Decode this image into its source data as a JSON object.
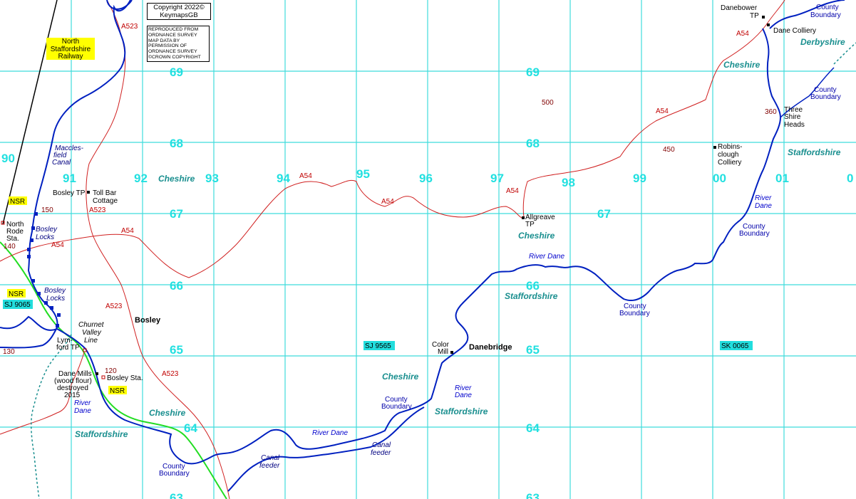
{
  "grid": {
    "eastings": [
      {
        "label": "90",
        "col": 0
      },
      {
        "label": "91",
        "col": 1
      },
      {
        "label": "92",
        "col": 2
      },
      {
        "label": "93",
        "col": 3
      },
      {
        "label": "94",
        "col": 4
      },
      {
        "label": "95",
        "col": 5
      },
      {
        "label": "96",
        "col": 6
      },
      {
        "label": "97",
        "col": 7
      },
      {
        "label": "98",
        "col": 8
      },
      {
        "label": "99",
        "col": 9
      },
      {
        "label": "00",
        "col": 10
      },
      {
        "label": "01",
        "col": 11
      },
      {
        "label": "0",
        "col": 12
      }
    ],
    "northings": [
      "69",
      "68",
      "67",
      "66",
      "65",
      "64",
      "63"
    ],
    "squares": [
      "SJ 9065",
      "SJ 9565",
      "SK 0065"
    ]
  },
  "copyright": {
    "line1": "Copyright 2022©",
    "line2": "KeymapsGB",
    "os_text": "REPRODUCED FROM ORDNANCE SURVEY MAP DATA BY PERMISSION OF ORDNANCE SURVEY ©CROWN COPYRIGHT"
  },
  "railway_label": "North Staffordshire Railway",
  "roads": {
    "a523": "A523",
    "a54": "A54"
  },
  "counties": {
    "cheshire": "Cheshire",
    "staffordshire": "Staffordshire",
    "derbyshire": "Derbyshire",
    "county_boundary": "County Boundary"
  },
  "places": {
    "bosley": "Bosley",
    "danebridge": "Danebridge",
    "color_mill": "Color Mill",
    "allgreave": "Allgreave TP",
    "bosley_tp": "Bosley TP",
    "toll_bar": "Toll Bar Cottage",
    "north_rode": "North Rode Sta.",
    "lymford": "Lym-ford TP",
    "dane_mills": "Dane Mills (wood flour) destroyed 2015",
    "bosley_sta": "Bosley Sta.",
    "danebower": "Danebower TP",
    "dane_colliery": "Dane Colliery",
    "robinsclough": "Robins-clough Colliery",
    "three_shire": "Three Shire Heads"
  },
  "water": {
    "macclesfield_canal": "Maccles-field Canal",
    "bosley_locks": "Bosley Locks",
    "river_dane": "River Dane",
    "canal_feeder": "Canal feeder",
    "churnet": "Churnet Valley Line"
  },
  "nsr": "NSR",
  "heights": [
    "500",
    "450",
    "360",
    "150",
    "140",
    "130",
    "120"
  ]
}
